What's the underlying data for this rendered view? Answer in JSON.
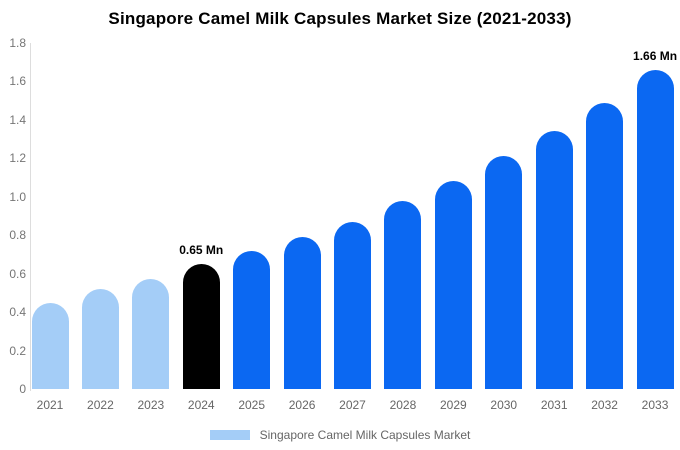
{
  "chart_data": {
    "type": "bar",
    "title": "Singapore Camel Milk Capsules Market Size (2021-2033)",
    "categories": [
      "2021",
      "2022",
      "2023",
      "2024",
      "2025",
      "2026",
      "2027",
      "2028",
      "2029",
      "2030",
      "2031",
      "2032",
      "2033"
    ],
    "values": [
      0.45,
      0.52,
      0.57,
      0.65,
      0.72,
      0.79,
      0.87,
      0.98,
      1.08,
      1.21,
      1.34,
      1.49,
      1.66
    ],
    "unit": "Mn",
    "bar_roles": [
      "historical",
      "historical",
      "historical",
      "highlight",
      "forecast",
      "forecast",
      "forecast",
      "forecast",
      "forecast",
      "forecast",
      "forecast",
      "forecast",
      "forecast"
    ],
    "colors": {
      "historical": "#a4cdf7",
      "highlight": "#000000",
      "forecast": "#0b68f2"
    },
    "data_labels": [
      {
        "category": "2024",
        "text": "0.65 Mn"
      },
      {
        "category": "2033",
        "text": "1.66 Mn"
      }
    ],
    "ylim": [
      0,
      1.8
    ],
    "yticks": [
      "1.8",
      "1.6",
      "1.4",
      "1.2",
      "1.0",
      "0.8",
      "0.6",
      "0.4",
      "0.2",
      "0"
    ],
    "xlabel": "",
    "ylabel": "",
    "grid": false,
    "legend_position": "bottom",
    "legend": [
      {
        "label": "Singapore Camel Milk Capsules Market",
        "swatch_color": "#a4cdf7"
      }
    ]
  }
}
